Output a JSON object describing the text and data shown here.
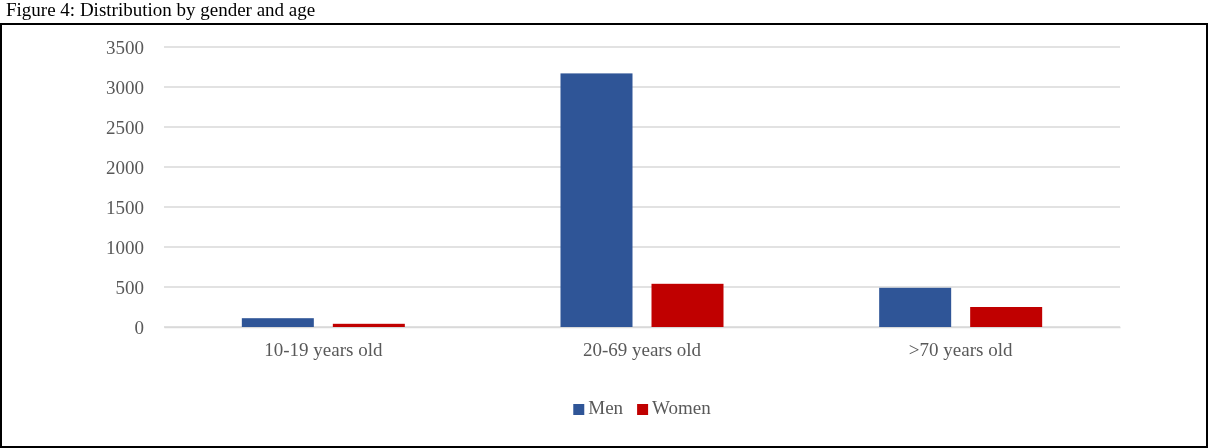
{
  "chart_data": {
    "type": "bar",
    "title": "Figure 4: Distribution by gender and age",
    "categories": [
      "10-19 years old",
      "20-69 years old",
      ">70 years old"
    ],
    "series": [
      {
        "name": "Men",
        "color": "#2f5597",
        "values": [
          110,
          3170,
          490
        ]
      },
      {
        "name": "Women",
        "color": "#c00000",
        "values": [
          40,
          540,
          250
        ]
      }
    ],
    "ylim": [
      0,
      3500
    ],
    "yticks": [
      0,
      500,
      1000,
      1500,
      2000,
      2500,
      3000,
      3500
    ],
    "grid": "y",
    "legend": "bottom"
  }
}
